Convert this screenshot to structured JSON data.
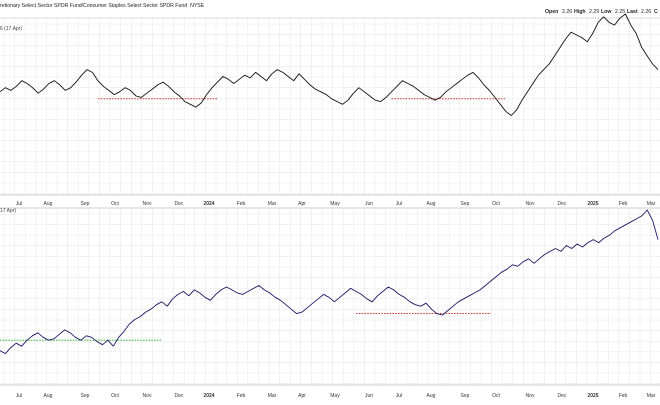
{
  "chart_data": {
    "type": "line",
    "title": "retionary Select Sector SPDR Fund/Consumer Staples Select Sector SPDR Fund",
    "exchange": "NYSE",
    "ohlc": [
      {
        "label": "Open",
        "value": "2.26"
      },
      {
        "label": "High",
        "value": "2.29"
      },
      {
        "label": "Low",
        "value": "2.25"
      },
      {
        "label": "Last",
        "value": "2.26"
      },
      {
        "label": "C",
        "value": ""
      }
    ],
    "x_ticks": [
      {
        "label": "Jul",
        "bold": false
      },
      {
        "label": "Aug",
        "bold": false
      },
      {
        "label": "Sep",
        "bold": false
      },
      {
        "label": "Oct",
        "bold": false
      },
      {
        "label": "Nov",
        "bold": false
      },
      {
        "label": "Dec",
        "bold": false
      },
      {
        "label": "2024",
        "bold": true
      },
      {
        "label": "Feb",
        "bold": false
      },
      {
        "label": "Mar",
        "bold": false
      },
      {
        "label": "Apr",
        "bold": false
      },
      {
        "label": "May",
        "bold": false
      },
      {
        "label": "Jun",
        "bold": false
      },
      {
        "label": "Jul",
        "bold": false
      },
      {
        "label": "Aug",
        "bold": false
      },
      {
        "label": "Sep",
        "bold": false
      },
      {
        "label": "Oct",
        "bold": false
      },
      {
        "label": "Nov",
        "bold": false
      },
      {
        "label": "Dec",
        "bold": false
      },
      {
        "label": "2025",
        "bold": true
      },
      {
        "label": "Feb",
        "bold": false
      },
      {
        "label": "Mar",
        "bold": false
      }
    ],
    "panels": [
      {
        "note": "6 (17 Apr)",
        "color": "#111111",
        "ylim": [
          0,
          100
        ],
        "values": [
          44,
          47,
          45,
          48,
          52,
          50,
          47,
          43,
          46,
          50,
          52,
          49,
          45,
          47,
          51,
          56,
          60,
          58,
          52,
          48,
          45,
          42,
          44,
          47,
          45,
          41,
          40,
          43,
          46,
          49,
          51,
          48,
          44,
          41,
          37,
          35,
          33,
          36,
          42,
          47,
          51,
          55,
          53,
          50,
          53,
          56,
          54,
          58,
          55,
          52,
          57,
          60,
          58,
          55,
          52,
          57,
          53,
          49,
          46,
          44,
          42,
          39,
          37,
          35,
          38,
          43,
          47,
          44,
          41,
          38,
          37,
          40,
          44,
          48,
          52,
          50,
          48,
          45,
          42,
          40,
          38,
          40,
          44,
          47,
          50,
          53,
          56,
          58,
          54,
          49,
          45,
          40,
          35,
          30,
          27,
          31,
          38,
          44,
          50,
          56,
          60,
          64,
          70,
          76,
          82,
          87,
          85,
          83,
          80,
          86,
          94,
          98,
          94,
          92,
          97,
          100,
          92,
          86,
          76,
          70,
          64,
          60
        ],
        "reference_lines": [
          {
            "color": "#cc2222",
            "x_range": [
              18,
              40
            ],
            "y": 39
          },
          {
            "color": "#cc2222",
            "x_range": [
              72,
              93
            ],
            "y": 39
          }
        ]
      },
      {
        "note": "17 Apr)",
        "color": "#1a1a66",
        "ylim": [
          0,
          100
        ],
        "values": [
          5,
          3,
          7,
          10,
          8,
          12,
          15,
          17,
          14,
          12,
          13,
          16,
          19,
          17,
          14,
          12,
          15,
          14,
          11,
          9,
          12,
          8,
          14,
          18,
          23,
          26,
          28,
          31,
          33,
          36,
          38,
          35,
          40,
          43,
          45,
          42,
          46,
          44,
          41,
          39,
          43,
          46,
          48,
          46,
          44,
          43,
          45,
          47,
          49,
          46,
          44,
          41,
          39,
          36,
          33,
          30,
          31,
          34,
          37,
          40,
          43,
          41,
          38,
          41,
          44,
          47,
          45,
          43,
          40,
          38,
          42,
          45,
          48,
          46,
          43,
          41,
          38,
          36,
          35,
          37,
          33,
          30,
          29,
          32,
          35,
          38,
          40,
          42,
          44,
          46,
          49,
          52,
          55,
          58,
          60,
          63,
          62,
          65,
          67,
          64,
          67,
          70,
          72,
          74,
          72,
          76,
          74,
          77,
          75,
          78,
          80,
          78,
          81,
          83,
          86,
          88,
          90,
          92,
          94,
          96,
          100,
          93,
          80
        ],
        "reference_lines": [
          {
            "color": "#22aa22",
            "x_range": [
              0,
              30
            ],
            "y": 12
          },
          {
            "color": "#cc2222",
            "x_range": [
              66,
              91
            ],
            "y": 30
          }
        ]
      }
    ]
  }
}
